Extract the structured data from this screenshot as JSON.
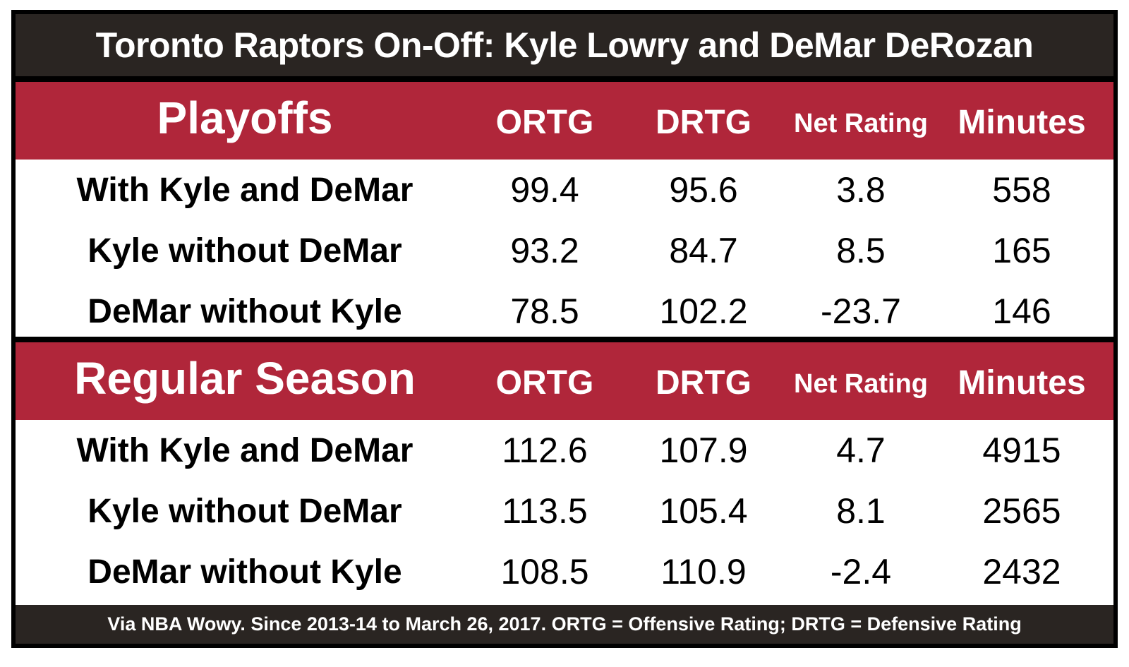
{
  "title": "Toronto Raptors On-Off: Kyle Lowry and DeMar DeRozan",
  "footer": "Via NBA Wowy. Since 2013-14 to March 26, 2017. ORTG = Offensive Rating; DRTG = Defensive Rating",
  "colors": {
    "title_bar": "#2a2522",
    "section_band": "#b0263a",
    "text_light": "#ffffff"
  },
  "chart_data": {
    "type": "table",
    "title": "Toronto Raptors On-Off: Kyle Lowry and DeMar DeRozan",
    "columns": [
      "ORTG",
      "DRTG",
      "Net Rating",
      "Minutes"
    ],
    "sections": [
      {
        "name": "Playoffs",
        "rows": [
          {
            "label": "With Kyle and DeMar",
            "values": [
              "99.4",
              "95.6",
              "3.8",
              "558"
            ]
          },
          {
            "label": "Kyle without DeMar",
            "values": [
              "93.2",
              "84.7",
              "8.5",
              "165"
            ]
          },
          {
            "label": "DeMar without Kyle",
            "values": [
              "78.5",
              "102.2",
              "-23.7",
              "146"
            ]
          }
        ]
      },
      {
        "name": "Regular Season",
        "rows": [
          {
            "label": "With Kyle and DeMar",
            "values": [
              "112.6",
              "107.9",
              "4.7",
              "4915"
            ]
          },
          {
            "label": "Kyle without DeMar",
            "values": [
              "113.5",
              "105.4",
              "8.1",
              "2565"
            ]
          },
          {
            "label": "DeMar without Kyle",
            "values": [
              "108.5",
              "110.9",
              "-2.4",
              "2432"
            ]
          }
        ]
      }
    ]
  }
}
